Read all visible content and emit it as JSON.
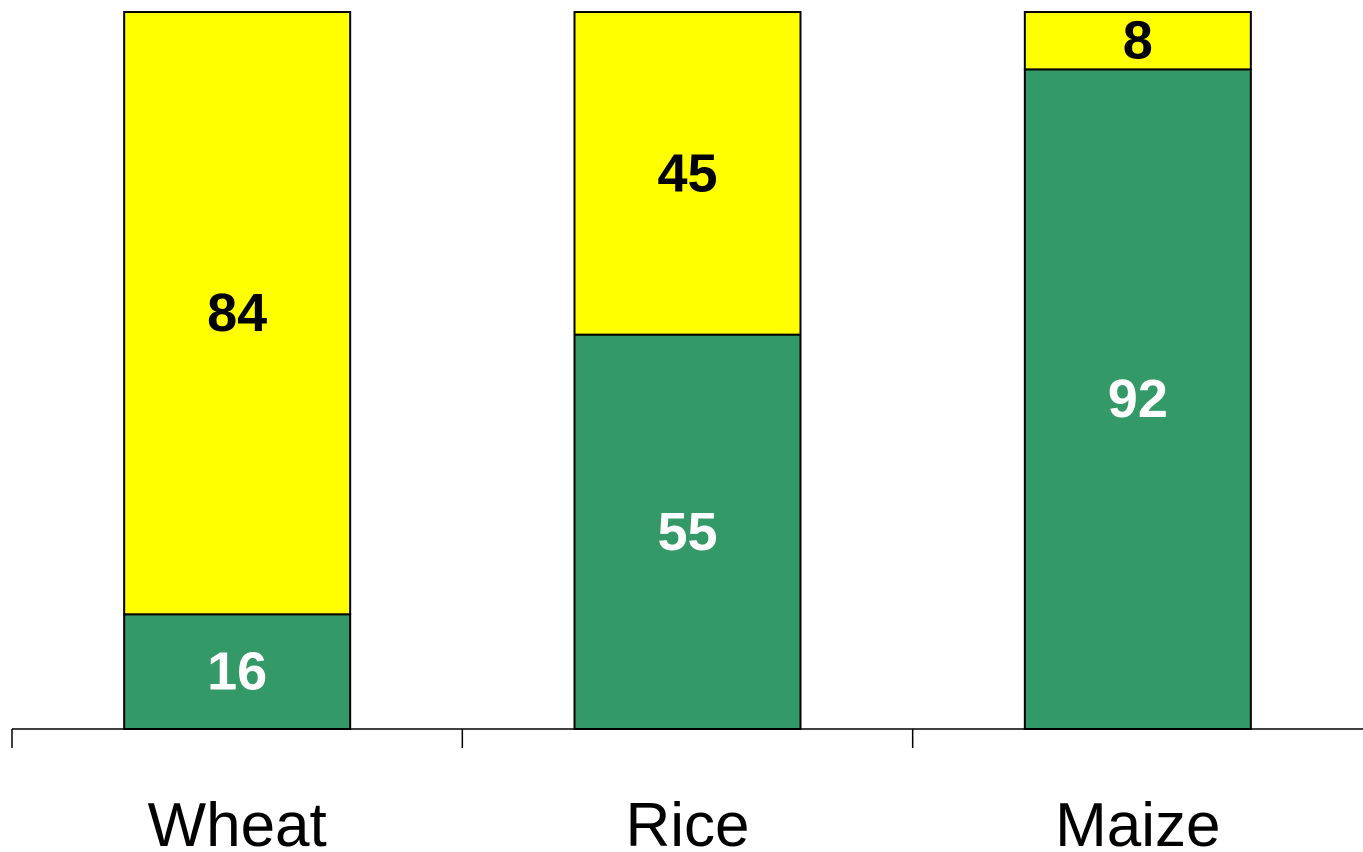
{
  "chart_data": {
    "type": "bar",
    "stacked": true,
    "categories": [
      "Wheat",
      "Rice",
      "Maize"
    ],
    "series": [
      {
        "values": [
          16,
          55,
          92
        ],
        "color": "#339966",
        "label_color": "#ffffff"
      },
      {
        "values": [
          84,
          45,
          8
        ],
        "color": "#ffff00",
        "label_color": "#000000"
      }
    ],
    "ylim": [
      0,
      100
    ],
    "grid": false,
    "legend": "none"
  }
}
